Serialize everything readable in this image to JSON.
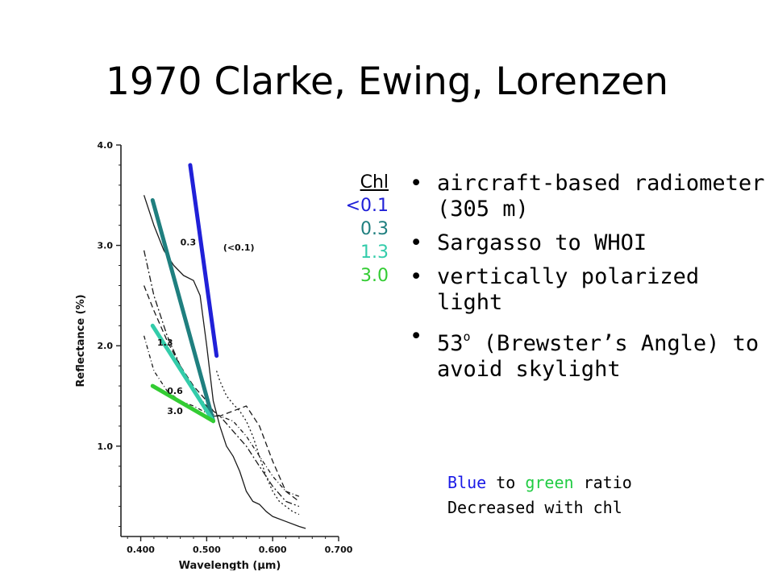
{
  "slide": {
    "title": "1970 Clarke, Ewing, Lorenzen"
  },
  "legend": {
    "header": "Chl",
    "items": [
      "<0.1",
      "0.3",
      "1.3",
      "3.0"
    ],
    "colors": [
      "#2020d8",
      "#1f7f7f",
      "#33ccaa",
      "#33cc33"
    ]
  },
  "bullets": {
    "item1": "aircraft-based radiometer (305 m)",
    "item2": "Sargasso to WHOI",
    "item3": "vertically polarized light",
    "item4_a": "53",
    "item4_sup": "o",
    "item4_b": " (Brewster’s Angle) to avoid skylight"
  },
  "note": {
    "word_blue": "Blue",
    "word_to": " to ",
    "word_green": "green",
    "word_ratio": " ratio",
    "line2": "Decreased with chl"
  },
  "chart_data": {
    "type": "line",
    "xlabel": "Wavelength (μm)",
    "ylabel": "Reflectance (%)",
    "xlim": [
      0.37,
      0.7
    ],
    "ylim": [
      0.1,
      4.0
    ],
    "x_ticks": [
      "0.400",
      "0.500",
      "0.600",
      "0.700"
    ],
    "y_ticks": [
      "1.0",
      "2.0",
      "3.0",
      "4.0"
    ],
    "curve_labels": [
      "(<0.1)",
      "0.3",
      "1.3",
      "0.6",
      "3.0"
    ],
    "series": [
      {
        "name": "<0.1",
        "style": "dotted",
        "x": [
          0.515,
          0.52,
          0.53,
          0.54,
          0.55,
          0.56,
          0.57,
          0.58,
          0.59,
          0.6,
          0.61,
          0.62,
          0.63,
          0.64
        ],
        "y": [
          1.75,
          1.65,
          1.5,
          1.42,
          1.35,
          1.25,
          1.1,
          0.9,
          0.7,
          0.55,
          0.45,
          0.4,
          0.35,
          0.32
        ]
      },
      {
        "name": "0.3",
        "style": "solid",
        "x": [
          0.405,
          0.42,
          0.435,
          0.45,
          0.465,
          0.48,
          0.49,
          0.5,
          0.51,
          0.52,
          0.53,
          0.54,
          0.55,
          0.56,
          0.57,
          0.58,
          0.59,
          0.6,
          0.62,
          0.64,
          0.65
        ],
        "y": [
          3.5,
          3.2,
          2.95,
          2.8,
          2.7,
          2.65,
          2.5,
          2.0,
          1.45,
          1.2,
          1.0,
          0.9,
          0.75,
          0.55,
          0.45,
          0.42,
          0.35,
          0.3,
          0.25,
          0.2,
          0.18
        ]
      },
      {
        "name": "1.3",
        "style": "dashdot",
        "x": [
          0.405,
          0.42,
          0.44,
          0.46,
          0.48,
          0.5,
          0.51,
          0.52,
          0.54,
          0.56,
          0.58,
          0.6,
          0.62,
          0.64
        ],
        "y": [
          2.95,
          2.5,
          2.1,
          1.8,
          1.55,
          1.4,
          1.3,
          1.3,
          1.15,
          1.0,
          0.8,
          0.6,
          0.45,
          0.4
        ]
      },
      {
        "name": "0.6",
        "style": "dashed",
        "x": [
          0.405,
          0.42,
          0.44,
          0.46,
          0.48,
          0.5,
          0.51,
          0.52,
          0.54,
          0.56,
          0.58,
          0.6,
          0.62,
          0.64
        ],
        "y": [
          2.6,
          2.35,
          2.05,
          1.8,
          1.6,
          1.45,
          1.35,
          1.3,
          1.35,
          1.4,
          1.2,
          0.85,
          0.55,
          0.45
        ]
      },
      {
        "name": "3.0",
        "style": "dashdot2",
        "x": [
          0.405,
          0.42,
          0.44,
          0.46,
          0.48,
          0.5,
          0.52,
          0.54,
          0.56,
          0.58,
          0.6,
          0.62,
          0.64
        ],
        "y": [
          2.1,
          1.75,
          1.55,
          1.45,
          1.4,
          1.33,
          1.3,
          1.25,
          1.1,
          0.9,
          0.7,
          0.55,
          0.5
        ]
      }
    ],
    "overlay_lines": [
      {
        "name": "<0.1",
        "color": "#2020d8",
        "x": [
          0.475,
          0.515
        ],
        "y": [
          3.8,
          1.9
        ]
      },
      {
        "name": "0.3",
        "color": "#1f7f7f",
        "x": [
          0.418,
          0.51
        ],
        "y": [
          3.45,
          1.25
        ]
      },
      {
        "name": "1.3",
        "color": "#33ccaa",
        "x": [
          0.418,
          0.51
        ],
        "y": [
          2.2,
          1.25
        ]
      },
      {
        "name": "3.0",
        "color": "#33cc33",
        "x": [
          0.418,
          0.51
        ],
        "y": [
          1.6,
          1.25
        ]
      }
    ]
  }
}
